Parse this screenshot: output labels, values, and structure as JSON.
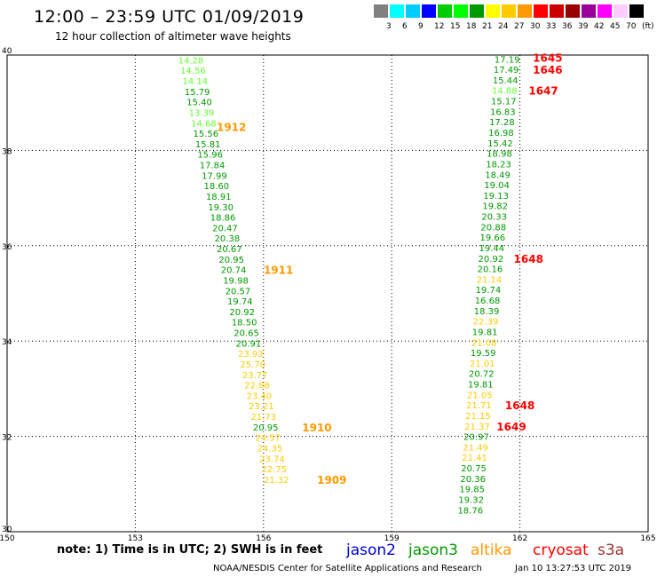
{
  "header": {
    "title": "12:00 – 23:59 UTC 01/09/2019",
    "subtitle": "12 hour collection of altimeter wave heights"
  },
  "color_scale": {
    "unit": "(ft)",
    "colors": [
      "#808080",
      "#00ffff",
      "#00ccff",
      "#0000ff",
      "#00cc00",
      "#00ff00",
      "#009900",
      "#ffff00",
      "#ffcc00",
      "#ff9900",
      "#ff0000",
      "#cc0000",
      "#990000",
      "#990099",
      "#ff00ff",
      "#ffccff",
      "#000000"
    ],
    "labels": [
      "3",
      "6",
      "9",
      "12",
      "15",
      "18",
      "21",
      "24",
      "27",
      "30",
      "33",
      "36",
      "39",
      "42",
      "45",
      "70"
    ]
  },
  "chart_data": {
    "type": "scatter",
    "title": "12:00 – 23:59 UTC 01/09/2019",
    "subtitle": "12 hour collection of altimeter wave heights",
    "xlim": [
      150,
      165
    ],
    "ylim": [
      30,
      40
    ],
    "xticks": [
      "150",
      "153",
      "156",
      "159",
      "162",
      "165"
    ],
    "yticks": [
      "40",
      "38",
      "36",
      "34",
      "32",
      "30"
    ],
    "grid": true,
    "series": [
      {
        "name": "jason3",
        "points": [
          {
            "x": 154.3,
            "y": 39.9,
            "v": "14.28",
            "c": "#66ff33"
          },
          {
            "x": 154.35,
            "y": 39.68,
            "v": "14.56",
            "c": "#66ff33"
          },
          {
            "x": 154.4,
            "y": 39.46,
            "v": "14.14",
            "c": "#66ff33"
          },
          {
            "x": 154.45,
            "y": 39.24,
            "v": "15.79",
            "c": "#009900"
          },
          {
            "x": 154.5,
            "y": 39.02,
            "v": "15.40",
            "c": "#009900"
          },
          {
            "x": 154.55,
            "y": 38.8,
            "v": "13.39",
            "c": "#66ff33"
          },
          {
            "x": 154.6,
            "y": 38.58,
            "v": "14.68",
            "c": "#66ff33"
          },
          {
            "x": 154.65,
            "y": 38.36,
            "v": "15.56",
            "c": "#009900"
          },
          {
            "x": 154.7,
            "y": 38.14,
            "v": "15.81",
            "c": "#009900"
          },
          {
            "x": 154.75,
            "y": 37.92,
            "v": "15.96",
            "c": "#009900"
          },
          {
            "x": 154.8,
            "y": 37.7,
            "v": "17.84",
            "c": "#009900"
          },
          {
            "x": 154.85,
            "y": 37.48,
            "v": "17.99",
            "c": "#009900"
          },
          {
            "x": 154.9,
            "y": 37.26,
            "v": "18.60",
            "c": "#009900"
          },
          {
            "x": 154.95,
            "y": 37.04,
            "v": "18.91",
            "c": "#009900"
          },
          {
            "x": 155.0,
            "y": 36.82,
            "v": "19.30",
            "c": "#009900"
          },
          {
            "x": 155.05,
            "y": 36.6,
            "v": "18.86",
            "c": "#009900"
          },
          {
            "x": 155.1,
            "y": 36.38,
            "v": "20.47",
            "c": "#009900"
          },
          {
            "x": 155.15,
            "y": 36.16,
            "v": "20.38",
            "c": "#009900"
          },
          {
            "x": 155.2,
            "y": 35.94,
            "v": "20.67",
            "c": "#009900"
          },
          {
            "x": 155.25,
            "y": 35.72,
            "v": "20.95",
            "c": "#009900"
          },
          {
            "x": 155.3,
            "y": 35.5,
            "v": "20.74",
            "c": "#009900"
          },
          {
            "x": 155.35,
            "y": 35.28,
            "v": "19.98",
            "c": "#009900"
          },
          {
            "x": 155.4,
            "y": 35.06,
            "v": "20.57",
            "c": "#009900"
          },
          {
            "x": 155.45,
            "y": 34.84,
            "v": "19.74",
            "c": "#009900"
          },
          {
            "x": 155.5,
            "y": 34.62,
            "v": "20.92",
            "c": "#009900"
          },
          {
            "x": 155.55,
            "y": 34.4,
            "v": "18.50",
            "c": "#009900"
          },
          {
            "x": 155.6,
            "y": 34.18,
            "v": "20.65",
            "c": "#009900"
          },
          {
            "x": 155.65,
            "y": 33.96,
            "v": "20.91",
            "c": "#009900"
          },
          {
            "x": 155.7,
            "y": 33.74,
            "v": "23.93",
            "c": "#ffcc00"
          },
          {
            "x": 155.75,
            "y": 33.52,
            "v": "25.70",
            "c": "#ffcc00"
          },
          {
            "x": 155.8,
            "y": 33.3,
            "v": "23.77",
            "c": "#ffcc00"
          },
          {
            "x": 155.85,
            "y": 33.08,
            "v": "22.88",
            "c": "#ffcc00"
          },
          {
            "x": 155.9,
            "y": 32.86,
            "v": "23.40",
            "c": "#ffcc00"
          },
          {
            "x": 155.95,
            "y": 32.64,
            "v": "23.21",
            "c": "#ffcc00"
          },
          {
            "x": 156.0,
            "y": 32.42,
            "v": "21.73",
            "c": "#ffcc00"
          },
          {
            "x": 156.05,
            "y": 32.2,
            "v": "20.95",
            "c": "#009900"
          },
          {
            "x": 156.1,
            "y": 31.98,
            "v": "24.57",
            "c": "#ffcc00"
          },
          {
            "x": 156.15,
            "y": 31.76,
            "v": "24.35",
            "c": "#ffcc00"
          },
          {
            "x": 156.2,
            "y": 31.54,
            "v": "23.74",
            "c": "#ffcc00"
          },
          {
            "x": 156.25,
            "y": 31.32,
            "v": "22.75",
            "c": "#ffcc00"
          },
          {
            "x": 156.3,
            "y": 31.1,
            "v": "21.32",
            "c": "#ffcc00"
          },
          {
            "x": 161.7,
            "y": 39.92,
            "v": "17.19",
            "c": "#009900"
          },
          {
            "x": 161.68,
            "y": 39.7,
            "v": "17.49",
            "c": "#009900"
          },
          {
            "x": 161.66,
            "y": 39.48,
            "v": "15.44",
            "c": "#009900"
          },
          {
            "x": 161.64,
            "y": 39.26,
            "v": "14.88",
            "c": "#66ff33"
          },
          {
            "x": 161.62,
            "y": 39.04,
            "v": "15.17",
            "c": "#009900"
          },
          {
            "x": 161.6,
            "y": 38.82,
            "v": "16.83",
            "c": "#009900"
          },
          {
            "x": 161.58,
            "y": 38.6,
            "v": "17.28",
            "c": "#009900"
          },
          {
            "x": 161.56,
            "y": 38.38,
            "v": "16.98",
            "c": "#009900"
          },
          {
            "x": 161.54,
            "y": 38.16,
            "v": "15.42",
            "c": "#009900"
          },
          {
            "x": 161.52,
            "y": 37.94,
            "v": "18.98",
            "c": "#009900"
          },
          {
            "x": 161.5,
            "y": 37.72,
            "v": "18.23",
            "c": "#009900"
          },
          {
            "x": 161.48,
            "y": 37.5,
            "v": "18.49",
            "c": "#009900"
          },
          {
            "x": 161.46,
            "y": 37.28,
            "v": "19.04",
            "c": "#009900"
          },
          {
            "x": 161.44,
            "y": 37.06,
            "v": "19.13",
            "c": "#009900"
          },
          {
            "x": 161.42,
            "y": 36.84,
            "v": "19.82",
            "c": "#009900"
          },
          {
            "x": 161.4,
            "y": 36.62,
            "v": "20.33",
            "c": "#009900"
          },
          {
            "x": 161.38,
            "y": 36.4,
            "v": "20.88",
            "c": "#009900"
          },
          {
            "x": 161.36,
            "y": 36.18,
            "v": "19.66",
            "c": "#009900"
          },
          {
            "x": 161.34,
            "y": 35.96,
            "v": "19.44",
            "c": "#009900"
          },
          {
            "x": 161.32,
            "y": 35.74,
            "v": "20.92",
            "c": "#009900"
          },
          {
            "x": 161.3,
            "y": 35.52,
            "v": "20.16",
            "c": "#009900"
          },
          {
            "x": 161.28,
            "y": 35.3,
            "v": "21.14",
            "c": "#ffcc00"
          },
          {
            "x": 161.26,
            "y": 35.08,
            "v": "19.74",
            "c": "#009900"
          },
          {
            "x": 161.24,
            "y": 34.86,
            "v": "16.68",
            "c": "#009900"
          },
          {
            "x": 161.22,
            "y": 34.64,
            "v": "18.39",
            "c": "#009900"
          },
          {
            "x": 161.2,
            "y": 34.42,
            "v": "22.39",
            "c": "#ffcc00"
          },
          {
            "x": 161.18,
            "y": 34.2,
            "v": "19.81",
            "c": "#009900"
          },
          {
            "x": 161.16,
            "y": 33.98,
            "v": "21.08",
            "c": "#ffcc00"
          },
          {
            "x": 161.14,
            "y": 33.76,
            "v": "19.59",
            "c": "#009900"
          },
          {
            "x": 161.12,
            "y": 33.54,
            "v": "21.01",
            "c": "#ffcc00"
          },
          {
            "x": 161.1,
            "y": 33.32,
            "v": "20.72",
            "c": "#009900"
          },
          {
            "x": 161.08,
            "y": 33.1,
            "v": "19.81",
            "c": "#009900"
          },
          {
            "x": 161.06,
            "y": 32.88,
            "v": "21.05",
            "c": "#ffcc00"
          },
          {
            "x": 161.04,
            "y": 32.66,
            "v": "21.71",
            "c": "#ffcc00"
          },
          {
            "x": 161.02,
            "y": 32.44,
            "v": "21.15",
            "c": "#ffcc00"
          },
          {
            "x": 161.0,
            "y": 32.22,
            "v": "21.37",
            "c": "#ffcc00"
          },
          {
            "x": 160.98,
            "y": 32.0,
            "v": "20.97",
            "c": "#009900"
          },
          {
            "x": 160.96,
            "y": 31.78,
            "v": "21.49",
            "c": "#ffcc00"
          },
          {
            "x": 160.94,
            "y": 31.56,
            "v": "21.41",
            "c": "#ffcc00"
          },
          {
            "x": 160.92,
            "y": 31.34,
            "v": "20.75",
            "c": "#009900"
          },
          {
            "x": 160.9,
            "y": 31.12,
            "v": "20.36",
            "c": "#009900"
          },
          {
            "x": 160.88,
            "y": 30.9,
            "v": "19.85",
            "c": "#009900"
          },
          {
            "x": 160.86,
            "y": 30.68,
            "v": "19.32",
            "c": "#009900"
          },
          {
            "x": 160.84,
            "y": 30.46,
            "v": "18.76",
            "c": "#009900"
          }
        ]
      }
    ],
    "time_labels": [
      {
        "x": 155.25,
        "y": 38.5,
        "t": "1912",
        "c": "#ff9900"
      },
      {
        "x": 156.35,
        "y": 35.5,
        "t": "1911",
        "c": "#ff9900"
      },
      {
        "x": 157.25,
        "y": 32.2,
        "t": "1910",
        "c": "#ff9900"
      },
      {
        "x": 157.6,
        "y": 31.1,
        "t": "1909",
        "c": "#ff9900"
      },
      {
        "x": 162.65,
        "y": 39.95,
        "t": "1645",
        "c": "#ff0000"
      },
      {
        "x": 162.65,
        "y": 39.7,
        "t": "1646",
        "c": "#ff0000"
      },
      {
        "x": 162.55,
        "y": 39.26,
        "t": "1647",
        "c": "#ff0000"
      },
      {
        "x": 162.2,
        "y": 35.74,
        "t": "1648",
        "c": "#ff0000"
      },
      {
        "x": 162.0,
        "y": 32.66,
        "t": "1648",
        "c": "#ff0000"
      },
      {
        "x": 161.8,
        "y": 32.22,
        "t": "1649",
        "c": "#ff0000"
      }
    ]
  },
  "footer": {
    "note": "note: 1) Time is in UTC; 2) SWH is in feet",
    "missions": [
      {
        "name": "jason2",
        "color": "#0000cc"
      },
      {
        "name": "jason3",
        "color": "#009900"
      },
      {
        "name": "altika",
        "color": "#ff9900"
      },
      {
        "name": "cryosat",
        "color": "#ff0000"
      },
      {
        "name": "s3a",
        "color": "#993333"
      }
    ],
    "credit": "NOAA/NESDIS Center for Satellite Applications and Research",
    "timestamp": "Jan 10 13:27:53 UTC 2019"
  }
}
